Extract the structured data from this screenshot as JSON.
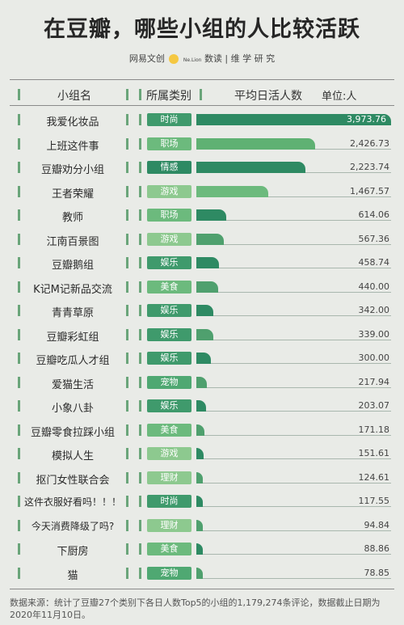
{
  "header": {
    "title": "在豆瓣，哪些小组的人比较活跃",
    "credit_left": "网易文创",
    "credit_badge": "Ne.Lion",
    "credit_right": "数读 | 维 学 研 究"
  },
  "columns": {
    "name": "小组名",
    "category": "所属类别",
    "value": "平均日活人数",
    "unit": "单位:人"
  },
  "chart_data": {
    "type": "bar",
    "title": "在豆瓣，哪些小组的人比较活跃",
    "value_label": "平均日活人数",
    "unit": "单位:人",
    "xlim": [
      0,
      3973.76
    ],
    "categories": [
      "我爱化妆品",
      "上班这件事",
      "豆瓣劝分小组",
      "王者荣耀",
      "教师",
      "江南百景图",
      "豆瓣鹅组",
      "K记M记新品交流",
      "青青草原",
      "豆瓣彩虹组",
      "豆瓣吃瓜人才组",
      "爱猫生活",
      "小象八卦",
      "豆瓣零食拉踩小组",
      "模拟人生",
      "抠门女性联合会",
      "这件衣服好看吗！！！",
      "今天消费降级了吗?",
      "下厨房",
      "猫"
    ],
    "group_types": [
      "时尚",
      "职场",
      "情感",
      "游戏",
      "职场",
      "游戏",
      "娱乐",
      "美食",
      "娱乐",
      "娱乐",
      "娱乐",
      "宠物",
      "娱乐",
      "美食",
      "游戏",
      "理财",
      "时尚",
      "理财",
      "美食",
      "宠物"
    ],
    "values": [
      3973.76,
      2426.73,
      2223.74,
      1467.57,
      614.06,
      567.36,
      458.74,
      440.0,
      342.0,
      339.0,
      300.0,
      217.94,
      203.07,
      171.18,
      151.61,
      124.61,
      117.55,
      94.84,
      88.86,
      78.85
    ],
    "value_labels": [
      "3,973.76",
      "2,426.73",
      "2,223.74",
      "1,467.57",
      "614.06",
      "567.36",
      "458.74",
      "440.00",
      "342.00",
      "339.00",
      "300.00",
      "217.94",
      "203.07",
      "171.18",
      "151.61",
      "124.61",
      "117.55",
      "94.84",
      "88.86",
      "78.85"
    ],
    "type_colors": {
      "时尚": "#3f9a6c",
      "职场": "#6cba7d",
      "情感": "#2e8a63",
      "游戏": "#8dc98f",
      "娱乐": "#3f9a6c",
      "美食": "#6cba7d",
      "宠物": "#4fa872",
      "理财": "#8dc98f"
    }
  },
  "footer": {
    "source": "数据来源：统计了豆瓣27个类别下各日人数Top5的小组的1,179,274条评论，数据截止日期为2020年11月10日。"
  }
}
